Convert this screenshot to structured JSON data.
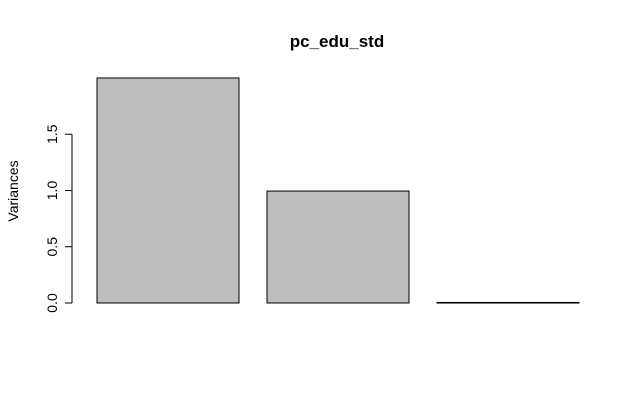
{
  "chart_data": {
    "type": "bar",
    "title": "pc_edu_std",
    "xlabel": "",
    "ylabel": "Variances",
    "categories": [
      "",
      "",
      ""
    ],
    "values": [
      2.0,
      0.995,
      0.005
    ],
    "ylim": [
      0,
      2.0
    ],
    "yticks": [
      "0.0",
      "0.5",
      "1.0",
      "1.5"
    ],
    "grid": false,
    "legend": "none",
    "bar_color": "#bebebe",
    "bar_border_color": "#000000"
  }
}
